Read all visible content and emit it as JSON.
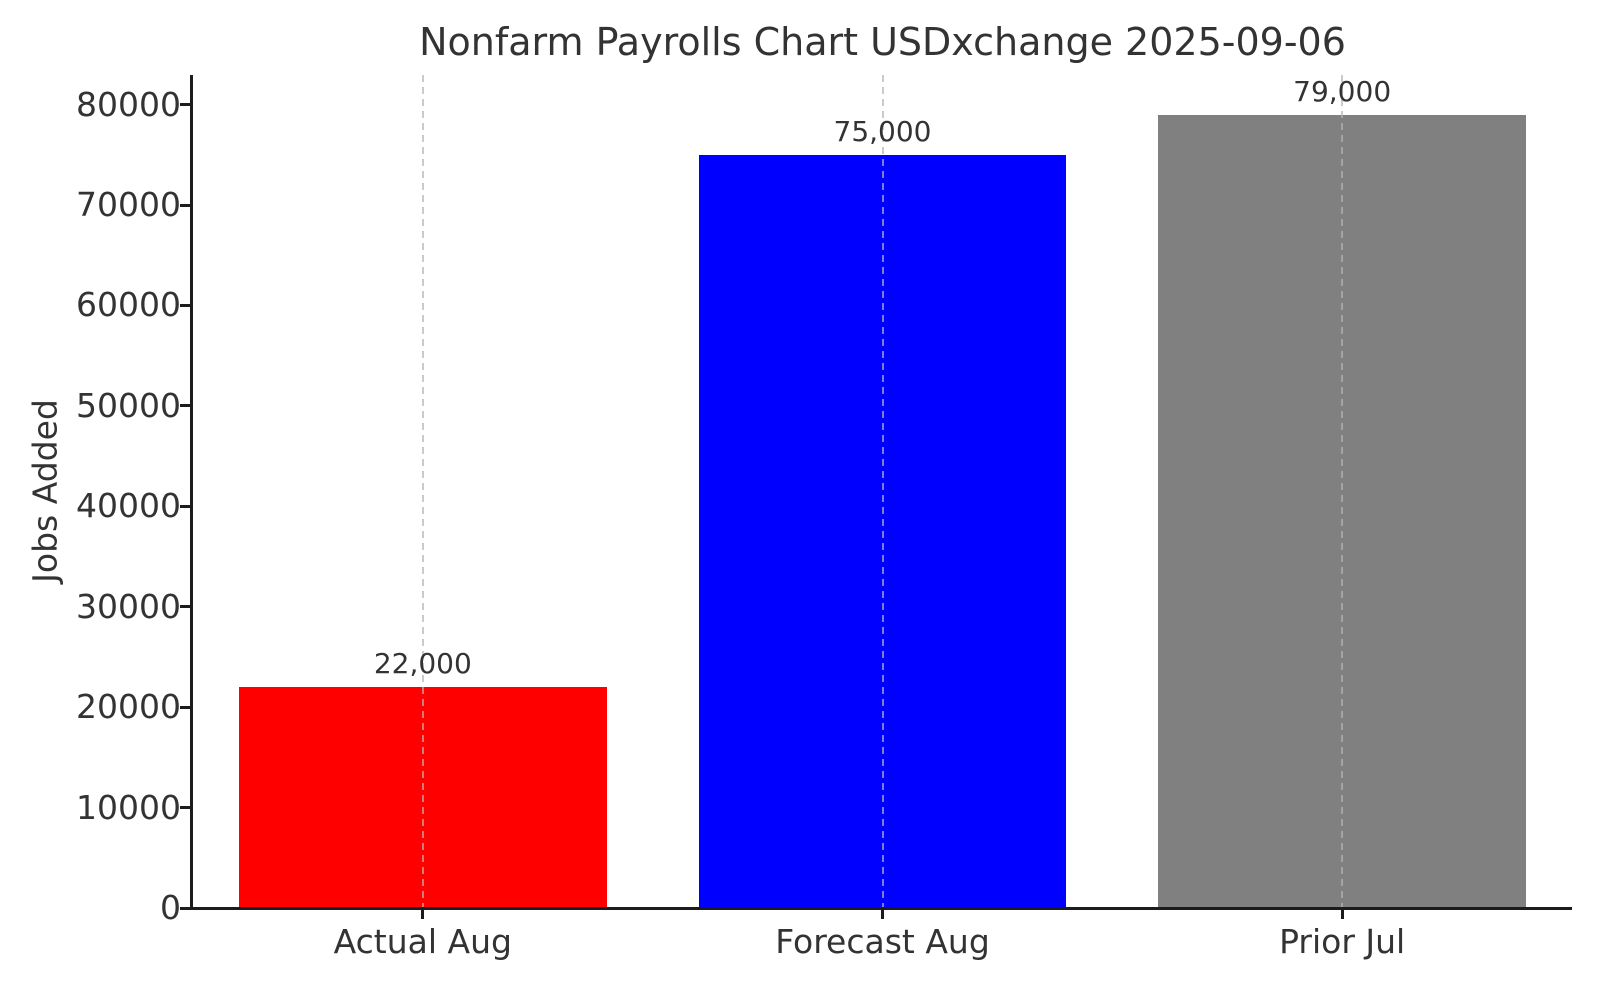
{
  "figure": {
    "background_color": "#ffffff",
    "text_color": "#333333",
    "spine_color": "#1c1c1c",
    "grid_color": "rgba(179,179,179,0.7)"
  },
  "chart_data": {
    "type": "bar",
    "title": "Nonfarm Payrolls Chart USDxchange 2025-09-06",
    "xlabel": "",
    "ylabel": "Jobs Added",
    "categories": [
      "Actual Aug",
      "Forecast Aug",
      "Prior Jul"
    ],
    "values": [
      22000,
      75000,
      79000
    ],
    "value_labels": [
      "22,000",
      "75,000",
      "79,000"
    ],
    "bar_colors": [
      "#ff0000",
      "#0000ff",
      "#808080"
    ],
    "bar_width_fraction": 0.8,
    "ylim": [
      0,
      82950
    ],
    "yticks": [
      0,
      10000,
      20000,
      30000,
      40000,
      50000,
      60000,
      70000,
      80000
    ],
    "ytick_labels": [
      "0",
      "10000",
      "20000",
      "30000",
      "40000",
      "50000",
      "60000",
      "70000",
      "80000"
    ],
    "grid": "vertical dashed lines at bar centers, drawn above bars",
    "legend": "none"
  }
}
